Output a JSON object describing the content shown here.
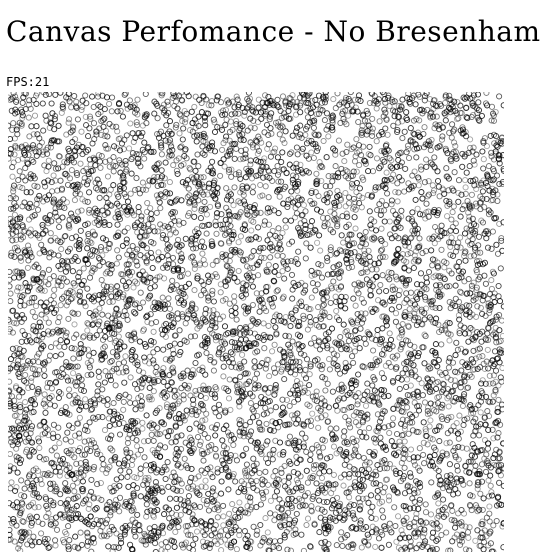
{
  "page": {
    "title": "Canvas Perfomance - No Bresenham"
  },
  "fps": {
    "text": "FPS:21"
  },
  "canvas": {
    "mark_shape": "circle-outline",
    "mark_color": "#000000",
    "background": "#ffffff"
  }
}
